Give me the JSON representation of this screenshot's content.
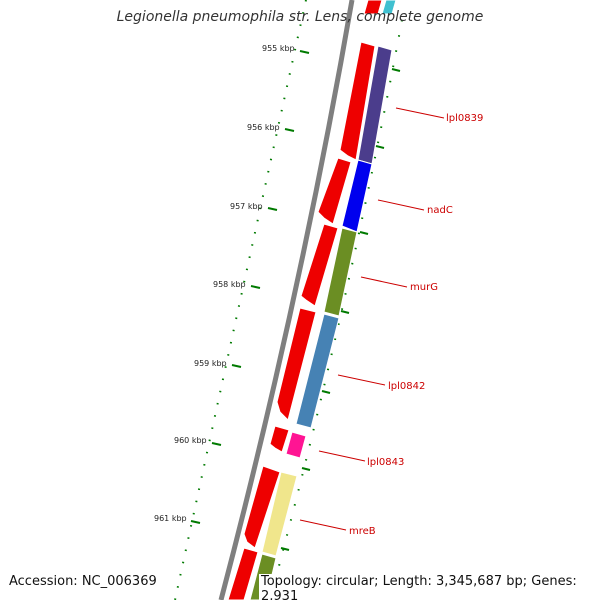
{
  "title": "Legionella pneumophila str. Lens, complete genome",
  "footer": {
    "accession": "Accession: NC_006369",
    "topology": "Topology: circular; Length: 3,345,687 bp; Genes: 2,931"
  },
  "ticks": [
    "955 kbp",
    "956 kbp",
    "957 kbp",
    "958 kbp",
    "959 kbp",
    "960 kbp",
    "961 kbp"
  ],
  "genes": [
    {
      "label": "lpl0839",
      "color": "#4b3d8c"
    },
    {
      "label": "nadC",
      "color": "#0000ee"
    },
    {
      "label": "murG",
      "color": "#6b8e23"
    },
    {
      "label": "lpl0842",
      "color": "#4682b4"
    },
    {
      "label": "lpl0843",
      "color": "#ff1493"
    },
    {
      "label": "mreB",
      "color": "#f0e68c"
    }
  ],
  "colors": {
    "strand_arrows": "#ee0000",
    "backbone": "#8a8a8a",
    "tick_mark": "#007a00",
    "label_text": "#cc0000"
  }
}
